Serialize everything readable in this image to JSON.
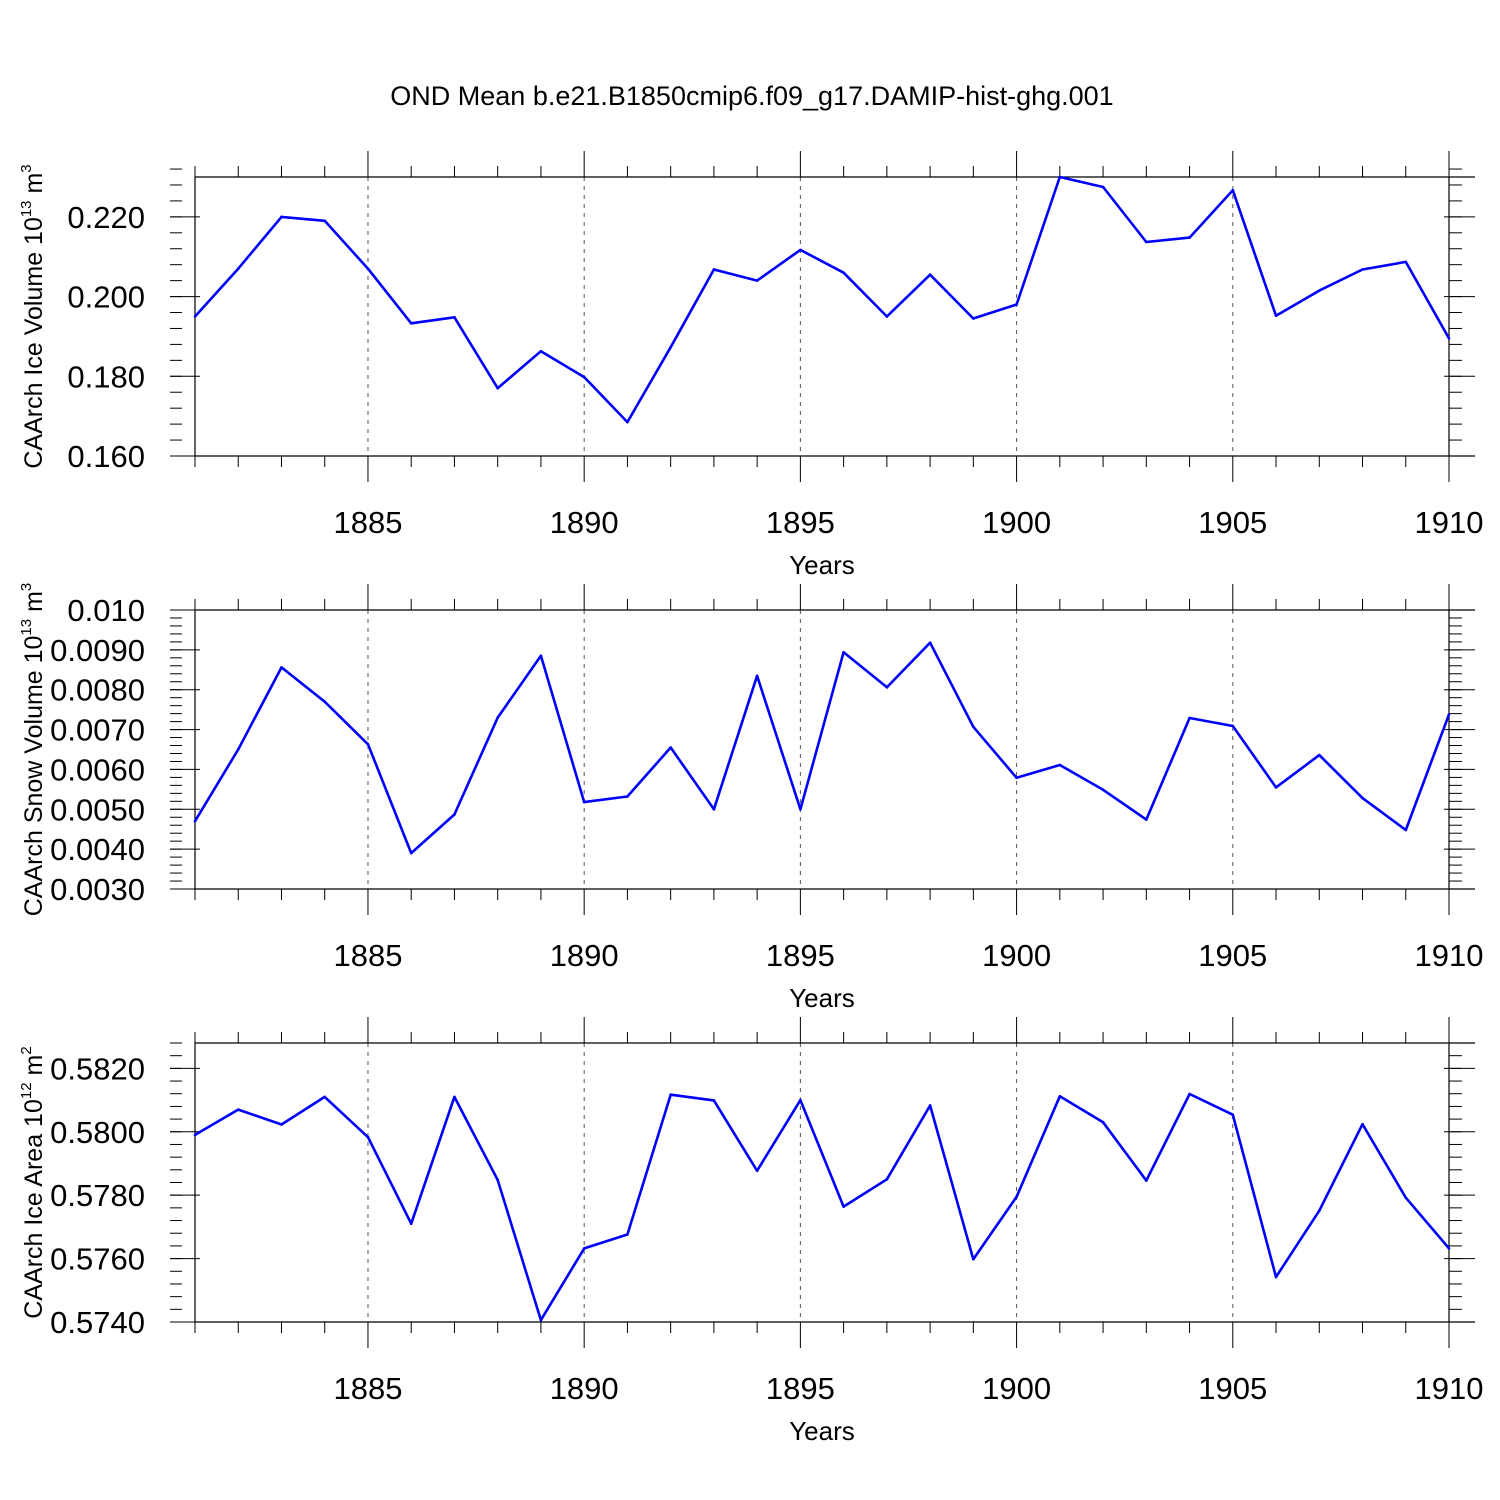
{
  "title": "OND Mean b.e21.B1850cmip6.f09_g17.DAMIP-hist-ghg.001",
  "colors": {
    "line": "#0000ff",
    "axis": "#000000",
    "grid": "#555555"
  },
  "chart_data": [
    {
      "type": "line",
      "ylabel": {
        "text": "CAArch Ice Volume 10",
        "exp": "13",
        "unit": " m",
        "unit_exp": "3"
      },
      "xlabel": "Years",
      "xlim": [
        1881,
        1910
      ],
      "ylim": [
        0.16,
        0.23
      ],
      "yticks": [
        0.16,
        0.18,
        0.2,
        0.22
      ],
      "ytick_labels": [
        "0.160",
        "0.180",
        "0.200",
        "0.220"
      ],
      "yminor_step": 0.004,
      "xticks": [
        1885,
        1890,
        1895,
        1900,
        1905,
        1910
      ],
      "xtick_labels": [
        "1885",
        "1890",
        "1895",
        "1900",
        "1905",
        "1910"
      ],
      "grid": "x-dashed",
      "x": [
        1881,
        1882,
        1883,
        1884,
        1885,
        1886,
        1887,
        1888,
        1889,
        1890,
        1891,
        1892,
        1893,
        1894,
        1895,
        1896,
        1897,
        1898,
        1899,
        1900,
        1901,
        1902,
        1903,
        1904,
        1905,
        1906,
        1907,
        1908,
        1909,
        1910
      ],
      "values": [
        0.195,
        0.207,
        0.22,
        0.219,
        0.207,
        0.1933,
        0.1948,
        0.177,
        0.1863,
        0.1798,
        0.1685,
        0.1873,
        0.2068,
        0.204,
        0.2117,
        0.206,
        0.195,
        0.2055,
        0.1945,
        0.198,
        0.23,
        0.2275,
        0.2137,
        0.2148,
        0.2267,
        0.1952,
        0.2015,
        0.2068,
        0.2087,
        0.1895
      ]
    },
    {
      "type": "line",
      "ylabel": {
        "text": "CAArch Snow Volume 10",
        "exp": "13",
        "unit": " m",
        "unit_exp": "3"
      },
      "xlabel": "Years",
      "xlim": [
        1881,
        1910
      ],
      "ylim": [
        0.003,
        0.01
      ],
      "yticks": [
        0.003,
        0.004,
        0.005,
        0.006,
        0.007,
        0.008,
        0.009,
        0.01
      ],
      "ytick_labels": [
        "0.0030",
        "0.0040",
        "0.0050",
        "0.0060",
        "0.0070",
        "0.0080",
        "0.0090",
        "0.010"
      ],
      "yminor_step": 0.0002,
      "xticks": [
        1885,
        1890,
        1895,
        1900,
        1905,
        1910
      ],
      "xtick_labels": [
        "1885",
        "1890",
        "1895",
        "1900",
        "1905",
        "1910"
      ],
      "grid": "x-dashed",
      "x": [
        1881,
        1882,
        1883,
        1884,
        1885,
        1886,
        1887,
        1888,
        1889,
        1890,
        1891,
        1892,
        1893,
        1894,
        1895,
        1896,
        1897,
        1898,
        1899,
        1900,
        1901,
        1902,
        1903,
        1904,
        1905,
        1906,
        1907,
        1908,
        1909,
        1910
      ],
      "values": [
        0.0047,
        0.0065,
        0.00856,
        0.0077,
        0.00663,
        0.0039,
        0.00487,
        0.0073,
        0.00885,
        0.00518,
        0.00532,
        0.00655,
        0.005,
        0.00835,
        0.005,
        0.00894,
        0.00806,
        0.00918,
        0.00707,
        0.00579,
        0.00611,
        0.00549,
        0.00474,
        0.00729,
        0.00709,
        0.00555,
        0.00636,
        0.00528,
        0.00448,
        0.00738
      ]
    },
    {
      "type": "line",
      "ylabel": {
        "text": "CAArch Ice Area 10",
        "exp": "12",
        "unit": " m",
        "unit_exp": "2"
      },
      "xlabel": "Years",
      "xlim": [
        1881,
        1910
      ],
      "ylim": [
        0.574,
        0.5828
      ],
      "yticks": [
        0.574,
        0.576,
        0.578,
        0.58,
        0.582
      ],
      "ytick_labels": [
        "0.5740",
        "0.5760",
        "0.5780",
        "0.5800",
        "0.5820"
      ],
      "yminor_step": 0.0004,
      "xticks": [
        1885,
        1890,
        1895,
        1900,
        1905,
        1910
      ],
      "xtick_labels": [
        "1885",
        "1890",
        "1895",
        "1900",
        "1905",
        "1910"
      ],
      "grid": "x-dashed",
      "x": [
        1881,
        1882,
        1883,
        1884,
        1885,
        1886,
        1887,
        1888,
        1889,
        1890,
        1891,
        1892,
        1893,
        1894,
        1895,
        1896,
        1897,
        1898,
        1899,
        1900,
        1901,
        1902,
        1903,
        1904,
        1905,
        1906,
        1907,
        1908,
        1909,
        1910
      ],
      "values": [
        0.5799,
        0.5807,
        0.58023,
        0.5811,
        0.57983,
        0.5771,
        0.5811,
        0.57848,
        0.57406,
        0.57632,
        0.57676,
        0.58117,
        0.58099,
        0.57877,
        0.581,
        0.57764,
        0.5785,
        0.58083,
        0.57598,
        0.57795,
        0.58112,
        0.5803,
        0.57846,
        0.58119,
        0.58054,
        0.57542,
        0.57751,
        0.58024,
        0.57792,
        0.57632
      ]
    }
  ]
}
